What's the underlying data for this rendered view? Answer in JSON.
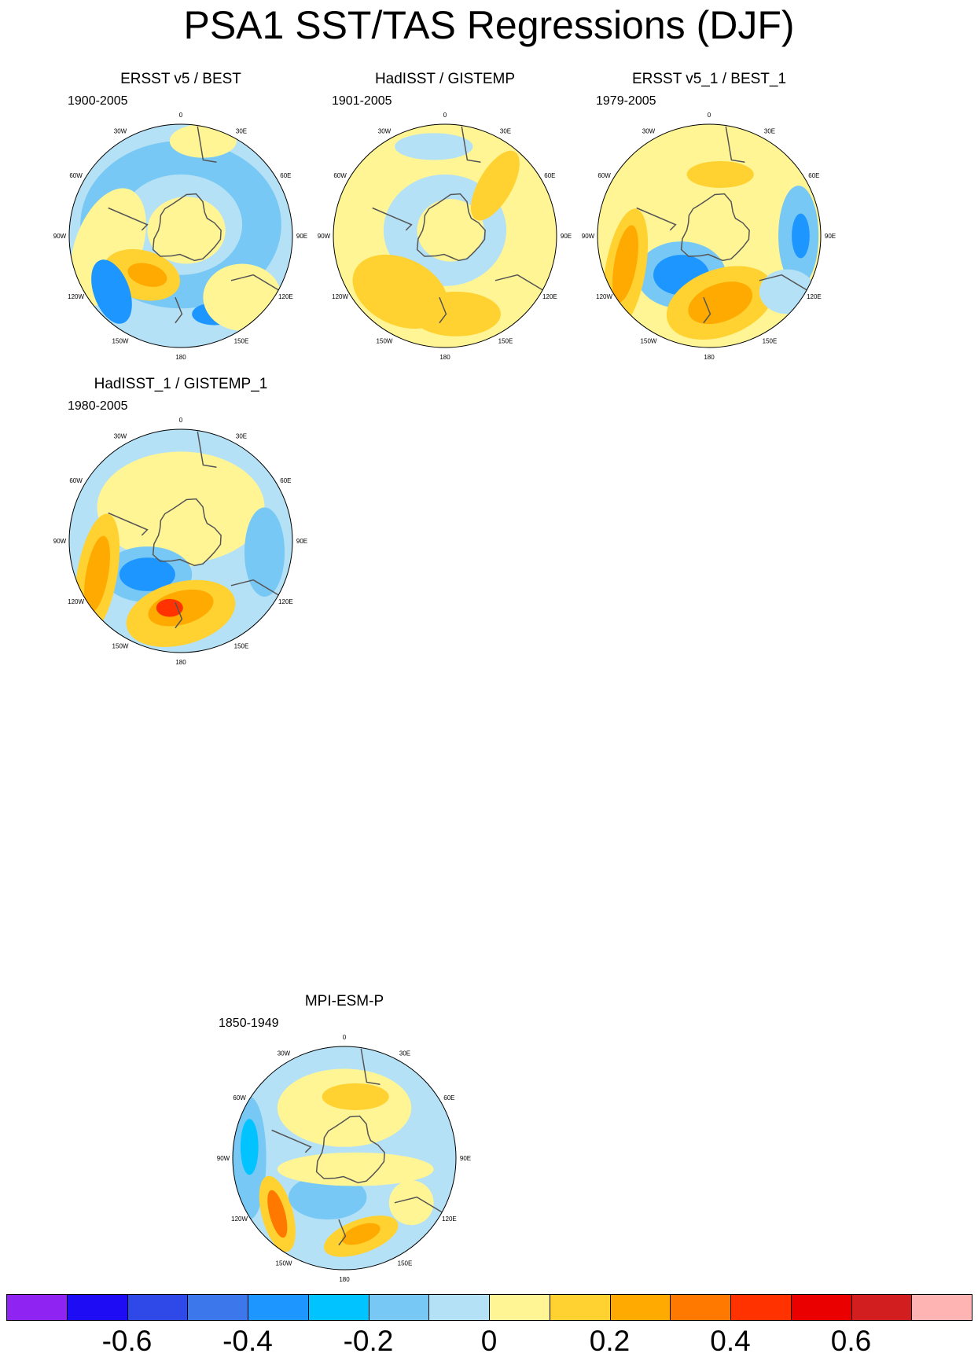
{
  "title": "PSA1 SST/TAS Regressions (DJF)",
  "panels": [
    {
      "title": "ERSST v5 / BEST",
      "period": "1900-2005"
    },
    {
      "title": "HadISST / GISTEMP",
      "period": "1901-2005"
    },
    {
      "title": "ERSST v5_1 / BEST_1",
      "period": "1979-2005"
    },
    {
      "title": "HadISST_1 / GISTEMP_1",
      "period": "1980-2005"
    },
    {
      "title": "MPI-ESM-P",
      "period": "1850-1949"
    }
  ],
  "longitude_labels": [
    "0",
    "30E",
    "60E",
    "90E",
    "120E",
    "150E",
    "180",
    "150W",
    "120W",
    "90W",
    "60W",
    "30W"
  ],
  "colorbar": {
    "colors": [
      "#8f24f2",
      "#1e0cf5",
      "#2f49e8",
      "#3c78ec",
      "#1e96ff",
      "#00c3ff",
      "#78c8f5",
      "#b4e1f5",
      "#fff595",
      "#ffd232",
      "#ffaa00",
      "#ff7800",
      "#ff3200",
      "#eb0000",
      "#d21e1e",
      "#ffb4b4"
    ],
    "tick_labels": [
      "-0.6",
      "-0.4",
      "-0.2",
      "0",
      "0.2",
      "0.4",
      "0.6"
    ]
  }
}
